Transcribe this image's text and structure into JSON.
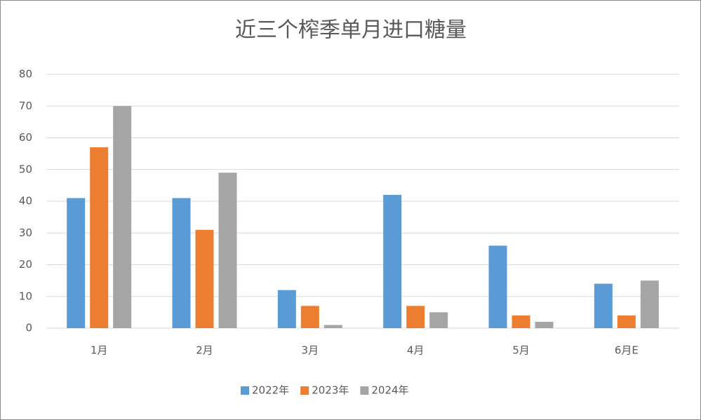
{
  "chart_data": {
    "type": "bar",
    "title": "近三个榨季单月进口糖量",
    "categories": [
      "1月",
      "2月",
      "3月",
      "4月",
      "5月",
      "6月E"
    ],
    "series": [
      {
        "name": "2022年",
        "color": "#5b9bd5",
        "values": [
          41,
          41,
          12,
          42,
          26,
          14
        ]
      },
      {
        "name": "2023年",
        "color": "#ed7d31",
        "values": [
          57,
          31,
          7,
          7,
          4,
          4
        ]
      },
      {
        "name": "2024年",
        "color": "#a5a5a5",
        "values": [
          70,
          49,
          1,
          5,
          2,
          15
        ]
      }
    ],
    "ylim": [
      0,
      80
    ],
    "yticks": [
      0,
      10,
      20,
      30,
      40,
      50,
      60,
      70,
      80
    ],
    "grid": true,
    "legend": "bottom"
  }
}
